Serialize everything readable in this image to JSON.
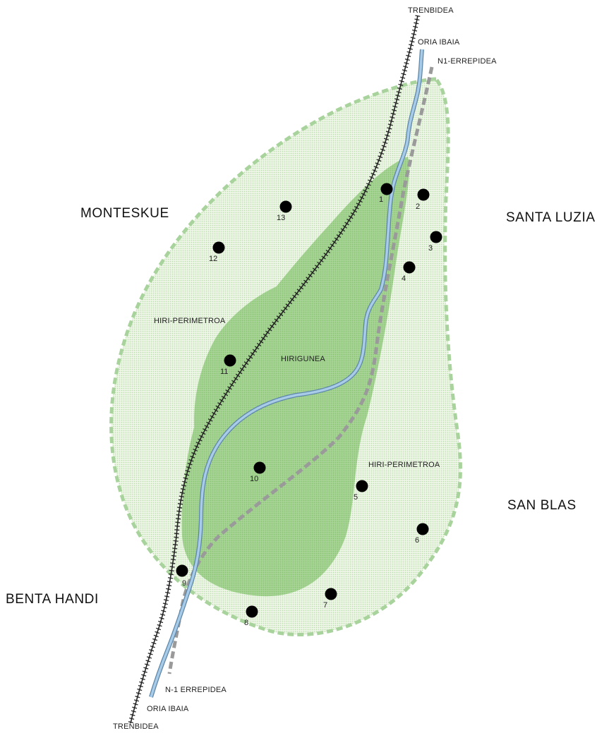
{
  "labels": {
    "railway_top": "TRENBIDEA",
    "river_top": "ORIA IBAIA",
    "road_top": "N1-ERREPIDEA",
    "railway_bottom": "TRENBIDEA",
    "river_bottom": "ORIA IBAIA",
    "road_bottom": "N-1 ERREPIDEA",
    "perimeter_left": "HIRI-PERIMETROA",
    "perimeter_right": "HIRI-PERIMETROA",
    "core": "HIRIGUNEA"
  },
  "districts": {
    "monteskue": "MONTESKUE",
    "santa_luzia": "SANTA LUZIA",
    "san_blas": "SAN BLAS",
    "benta_handi": "BENTA HANDI"
  },
  "points": [
    {
      "id": "p1",
      "label": "1"
    },
    {
      "id": "p2",
      "label": "2"
    },
    {
      "id": "p3",
      "label": "3"
    },
    {
      "id": "p4",
      "label": "4"
    },
    {
      "id": "p5",
      "label": "5"
    },
    {
      "id": "p6",
      "label": "6"
    },
    {
      "id": "p7",
      "label": "7"
    },
    {
      "id": "p8",
      "label": "8"
    },
    {
      "id": "p9",
      "label": "9"
    },
    {
      "id": "p10",
      "label": "10"
    },
    {
      "id": "p11",
      "label": "11"
    },
    {
      "id": "p12",
      "label": "12"
    },
    {
      "id": "p13",
      "label": "13"
    }
  ],
  "colors": {
    "perimeter_fill": "#e6f1dc",
    "perimeter_stroke": "#a9d39c",
    "core_fill": "#9fd28f",
    "river": "#8fb7d9",
    "river_edge": "#5d86a8",
    "road": "#9a9a9a",
    "railway": "#222222",
    "point": "#000000"
  }
}
